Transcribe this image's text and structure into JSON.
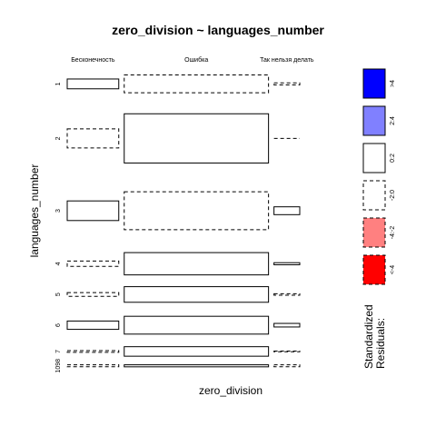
{
  "chart_data": {
    "type": "mosaic",
    "title": "zero_division ~ languages_number",
    "xlabel": "zero_division",
    "ylabel": "languages_number",
    "columns": [
      "Бесконечность",
      "Ошибка",
      "Так нельзя делать"
    ],
    "column_proportions": [
      0.2,
      0.56,
      0.1
    ],
    "rows": [
      "1",
      "2",
      "3",
      "4",
      "5",
      "6",
      "7",
      "1098"
    ],
    "row_proportions": [
      0.1,
      0.23,
      0.22,
      0.1,
      0.07,
      0.1,
      0.04,
      0.02
    ],
    "cells": [
      {
        "row": "1",
        "col": "Бесконечность",
        "frac": 0.33,
        "style": "solid"
      },
      {
        "row": "1",
        "col": "Ошибка",
        "frac": 0.6,
        "style": "dashed"
      },
      {
        "row": "1",
        "col": "Так нельзя делать",
        "frac": 0.07,
        "style": "dashed"
      },
      {
        "row": "2",
        "col": "Бесконечность",
        "frac": 0.28,
        "style": "dashed"
      },
      {
        "row": "2",
        "col": "Ошибка",
        "frac": 0.72,
        "style": "solid"
      },
      {
        "row": "2",
        "col": "Так нельзя делать",
        "frac": 0.0,
        "style": "dashed"
      },
      {
        "row": "3",
        "col": "Бесконечность",
        "frac": 0.3,
        "style": "solid"
      },
      {
        "row": "3",
        "col": "Ошибка",
        "frac": 0.58,
        "style": "dashed"
      },
      {
        "row": "3",
        "col": "Так нельзя делать",
        "frac": 0.12,
        "style": "solid"
      },
      {
        "row": "4",
        "col": "Бесконечность",
        "frac": 0.18,
        "style": "dashed"
      },
      {
        "row": "4",
        "col": "Ошибка",
        "frac": 0.75,
        "style": "solid"
      },
      {
        "row": "4",
        "col": "Так нельзя делать",
        "frac": 0.07,
        "style": "solid"
      },
      {
        "row": "5",
        "col": "Бесконечность",
        "frac": 0.18,
        "style": "dashed"
      },
      {
        "row": "5",
        "col": "Ошибка",
        "frac": 0.75,
        "style": "solid"
      },
      {
        "row": "5",
        "col": "Так нельзя делать",
        "frac": 0.07,
        "style": "dashed"
      },
      {
        "row": "6",
        "col": "Бесконечность",
        "frac": 0.28,
        "style": "solid"
      },
      {
        "row": "6",
        "col": "Ошибка",
        "frac": 0.6,
        "style": "solid"
      },
      {
        "row": "6",
        "col": "Так нельзя делать",
        "frac": 0.12,
        "style": "solid"
      },
      {
        "row": "7",
        "col": "Бесконечность",
        "frac": 0.14,
        "style": "dashed"
      },
      {
        "row": "7",
        "col": "Ошибка",
        "frac": 0.8,
        "style": "solid"
      },
      {
        "row": "7",
        "col": "Так нельзя делать",
        "frac": 0.06,
        "style": "dashed"
      },
      {
        "row": "1098",
        "col": "Бесконечность",
        "frac": 0.33,
        "style": "dashed"
      },
      {
        "row": "1098",
        "col": "Ошибка",
        "frac": 0.34,
        "style": "solid"
      },
      {
        "row": "1098",
        "col": "Так нельзя делать",
        "frac": 0.33,
        "style": "dashed"
      }
    ],
    "legend": {
      "title_lines": [
        "Standardized",
        "Residuals:"
      ],
      "placement": "right",
      "entries": [
        {
          "label": ">4",
          "color": "#0000ff",
          "style": "solid"
        },
        {
          "label": "2:4",
          "color": "#8080ff",
          "style": "solid"
        },
        {
          "label": "0:2",
          "color": "#ffffff",
          "style": "solid"
        },
        {
          "label": "-2:0",
          "color": "#ffffff",
          "style": "dashed"
        },
        {
          "label": "-4:-2",
          "color": "#ff8080",
          "style": "dashed"
        },
        {
          "label": "<-4",
          "color": "#ff0000",
          "style": "dashed"
        }
      ]
    }
  }
}
